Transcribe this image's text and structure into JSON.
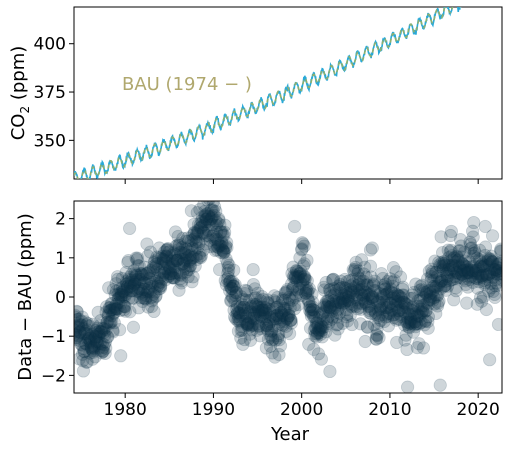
{
  "chart_data": [
    {
      "type": "line",
      "xlabel": "",
      "ylabel_main": "CO",
      "ylabel_sub": "2",
      "ylabel_tail": " (ppm)",
      "xlim": [
        1974.2,
        2022.7
      ],
      "ylim": [
        330,
        419
      ],
      "yticks": [
        350,
        375,
        400
      ],
      "ytick_labels": [
        "350",
        "375",
        "400"
      ],
      "annotation": "BAU (1974 − )",
      "annotation_color": "#b0a86e",
      "series": [
        {
          "role": "data",
          "color": "#29a9d8",
          "style": "solid",
          "values_note_free": true,
          "model": {
            "base": 330.0,
            "slope": 1.55,
            "quad": 0.0125,
            "amplitude": 3.0,
            "t0": 1974.2,
            "noise": 0.6
          }
        },
        {
          "role": "bau",
          "color": "#8fb06e",
          "style": "dashed",
          "model": {
            "base": 330.0,
            "slope": 1.55,
            "quad": 0.0125,
            "amplitude": 2.8,
            "t0": 1974.2,
            "noise": 0.0
          }
        }
      ]
    },
    {
      "type": "scatter",
      "xlabel": "Year",
      "ylabel": "Data − BAU (ppm)",
      "xlim": [
        1974.2,
        2022.7
      ],
      "ylim": [
        -2.45,
        2.45
      ],
      "xticks": [
        1980,
        1990,
        2000,
        2010,
        2020
      ],
      "xtick_labels": [
        "1980",
        "1990",
        "2000",
        "2010",
        "2020"
      ],
      "yticks": [
        -2,
        -1,
        0,
        1,
        2
      ],
      "ytick_labels": [
        "−2",
        "−1",
        "0",
        "1",
        "2"
      ],
      "color": "#0d3148",
      "alpha": 0.2,
      "trend": [
        [
          1974.2,
          -0.9
        ],
        [
          1976.0,
          -1.2
        ],
        [
          1977.5,
          -1.0
        ],
        [
          1979.0,
          0.0
        ],
        [
          1981.0,
          0.3
        ],
        [
          1983.0,
          0.5
        ],
        [
          1985.0,
          0.8
        ],
        [
          1987.0,
          0.8
        ],
        [
          1988.5,
          1.6
        ],
        [
          1989.5,
          2.0
        ],
        [
          1991.0,
          1.4
        ],
        [
          1992.5,
          -0.3
        ],
        [
          1994.0,
          -0.6
        ],
        [
          1995.5,
          -0.3
        ],
        [
          1997.0,
          -0.8
        ],
        [
          1998.5,
          -0.2
        ],
        [
          2000.0,
          0.7
        ],
        [
          2001.5,
          -0.8
        ],
        [
          2003.0,
          -0.3
        ],
        [
          2005.0,
          0.0
        ],
        [
          2006.5,
          0.3
        ],
        [
          2008.5,
          -0.3
        ],
        [
          2010.5,
          0.0
        ],
        [
          2012.5,
          -0.6
        ],
        [
          2014.0,
          -0.2
        ],
        [
          2016.0,
          0.6
        ],
        [
          2018.0,
          0.8
        ],
        [
          2020.0,
          0.7
        ],
        [
          2022.7,
          0.5
        ]
      ],
      "outliers": [
        [
          1980.5,
          1.75
        ],
        [
          1987.5,
          2.2
        ],
        [
          1988.2,
          1.6
        ],
        [
          1994.5,
          0.7
        ],
        [
          1999.2,
          1.8
        ],
        [
          2000.3,
          1.3
        ],
        [
          2003.2,
          -1.9
        ],
        [
          2006.8,
          0.95
        ],
        [
          2008.0,
          1.25
        ],
        [
          2010.4,
          0.75
        ],
        [
          2012.0,
          -2.3
        ],
        [
          2015.7,
          -2.25
        ],
        [
          2019.5,
          1.9
        ],
        [
          2020.8,
          1.8
        ],
        [
          2021.3,
          -1.6
        ],
        [
          2022.3,
          -0.7
        ],
        [
          1979.5,
          -1.5
        ],
        [
          2007.8,
          1.2
        ],
        [
          1996.0,
          -1.3
        ],
        [
          2013.8,
          -1.3
        ]
      ]
    }
  ]
}
